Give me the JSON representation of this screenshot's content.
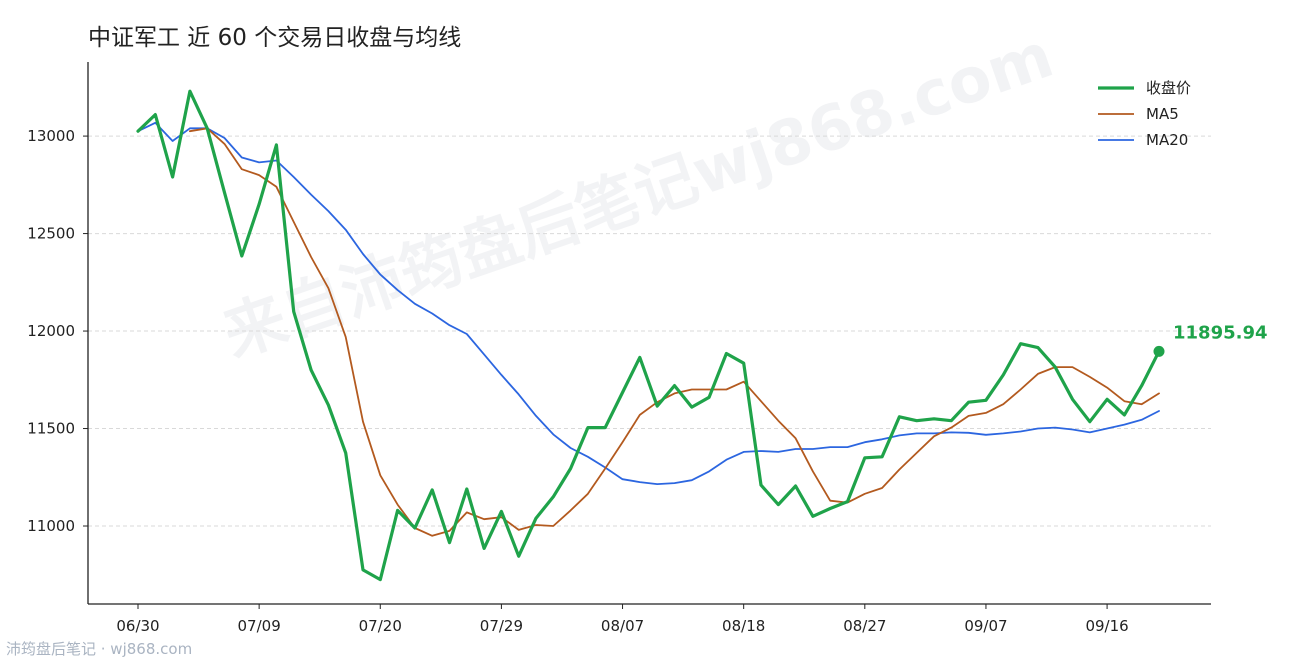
{
  "chart_data": {
    "type": "line",
    "title": "中证军工 近 60 个交易日收盘与均线",
    "watermark": "来自沛筠盘后笔记wj868.com",
    "footer": "沛筠盘后笔记 · wj868.com",
    "xlabel": "",
    "ylabel": "",
    "ylim": [
      10600,
      13380
    ],
    "yticks": [
      11000,
      11500,
      12000,
      12500,
      13000
    ],
    "x_tick_labels": [
      {
        "index": 0,
        "label": "06/30"
      },
      {
        "index": 7,
        "label": "07/09"
      },
      {
        "index": 14,
        "label": "07/20"
      },
      {
        "index": 21,
        "label": "07/29"
      },
      {
        "index": 28,
        "label": "08/07"
      },
      {
        "index": 35,
        "label": "08/18"
      },
      {
        "index": 42,
        "label": "08/27"
      },
      {
        "index": 49,
        "label": "09/07"
      },
      {
        "index": 56,
        "label": "09/16"
      }
    ],
    "n_points": 60,
    "legend_position": "top-right",
    "grid": "horizontal dashed",
    "series": [
      {
        "name": "收盘价",
        "color": "#1fa34a",
        "values": [
          13025,
          13110,
          12790,
          13230,
          13040,
          12710,
          12385,
          12650,
          12955,
          12100,
          11800,
          11620,
          11375,
          10775,
          10725,
          11080,
          10990,
          11185,
          10915,
          11190,
          10885,
          11075,
          10845,
          11040,
          11150,
          11295,
          11505,
          11505,
          11685,
          11865,
          11615,
          11720,
          11610,
          11660,
          11885,
          11835,
          11210,
          11110,
          11205,
          11050,
          11090,
          11125,
          11350,
          11355,
          11560,
          11540,
          11550,
          11540,
          11635,
          11645,
          11775,
          11935,
          11915,
          11815,
          11650,
          11535,
          11650,
          11570,
          11720,
          11895.94
        ]
      },
      {
        "name": "MA5",
        "color": "#b35a1f",
        "values": [
          null,
          null,
          null,
          13025,
          13040,
          12960,
          12830,
          12800,
          12740,
          12560,
          12380,
          12220,
          11970,
          11535,
          11260,
          11110,
          10990,
          10950,
          10975,
          11070,
          11035,
          11045,
          10980,
          11005,
          11000,
          11080,
          11165,
          11295,
          11430,
          11570,
          11635,
          11680,
          11700,
          11700,
          11700,
          11740,
          11640,
          11540,
          11450,
          11280,
          11130,
          11120,
          11165,
          11195,
          11290,
          11375,
          11460,
          11505,
          11565,
          11580,
          11625,
          11700,
          11780,
          11815,
          11815,
          11765,
          11710,
          11640,
          11625,
          11680
        ]
      },
      {
        "name": "MA20",
        "color": "#2c66e0",
        "values": [
          13025,
          13068,
          12975,
          13040,
          13040,
          12990,
          12890,
          12865,
          12875,
          12790,
          12700,
          12615,
          12520,
          12395,
          12290,
          12210,
          12140,
          12090,
          12030,
          11985,
          11880,
          11775,
          11675,
          11565,
          11470,
          11400,
          11355,
          11300,
          11240,
          11225,
          11215,
          11220,
          11235,
          11280,
          11340,
          11380,
          11385,
          11380,
          11395,
          11395,
          11405,
          11405,
          11430,
          11445,
          11465,
          11475,
          11475,
          11480,
          11478,
          11468,
          11475,
          11485,
          11500,
          11505,
          11495,
          11480,
          11500,
          11520,
          11545,
          11590
        ]
      }
    ],
    "last_point_label": "11895.94"
  }
}
